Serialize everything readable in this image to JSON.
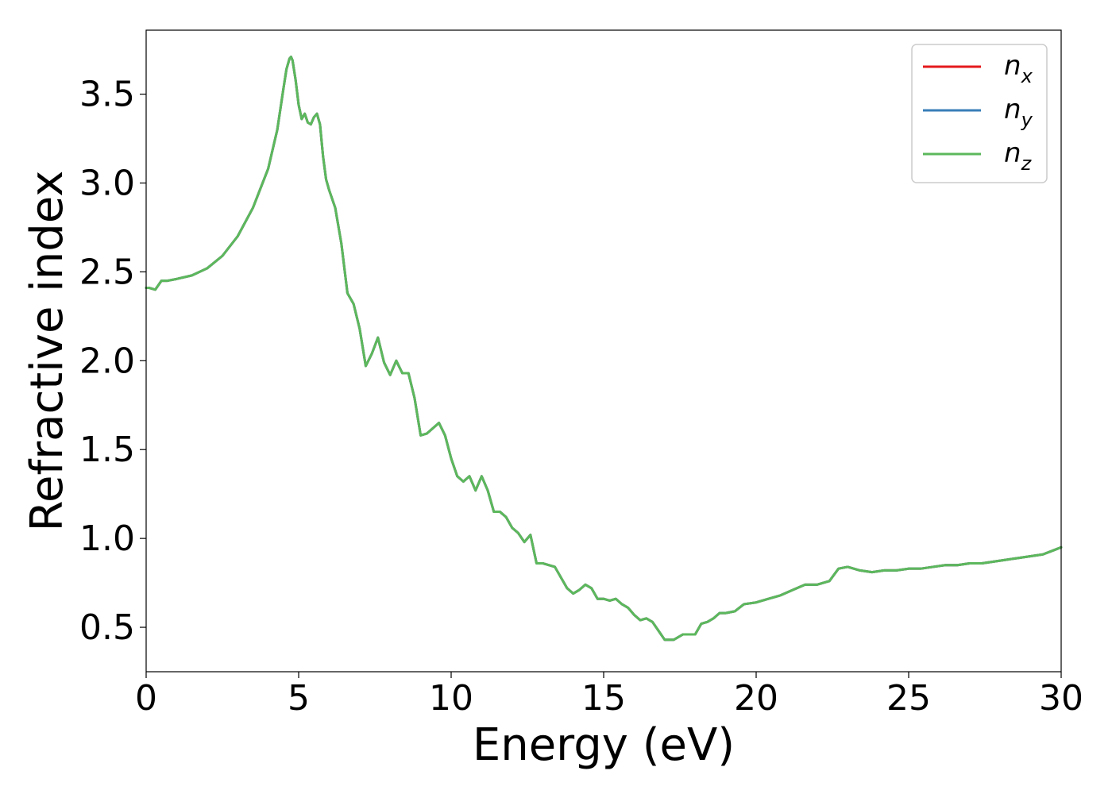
{
  "chart_data": {
    "type": "line",
    "xlabel": "Energy (eV)",
    "ylabel": "Refractive index",
    "xlim": [
      0,
      30
    ],
    "ylim": [
      0.25,
      3.86
    ],
    "xticks": [
      0,
      5,
      10,
      15,
      20,
      25,
      30
    ],
    "yticks": [
      0.5,
      1.0,
      1.5,
      2.0,
      2.5,
      3.0,
      3.5
    ],
    "grid": false,
    "legend_position": "top-right",
    "x": [
      0,
      0.1,
      0.3,
      0.5,
      0.7,
      1.0,
      1.5,
      2.0,
      2.5,
      3.0,
      3.5,
      4.0,
      4.3,
      4.5,
      4.6,
      4.7,
      4.75,
      4.8,
      4.9,
      5.0,
      5.1,
      5.2,
      5.3,
      5.4,
      5.5,
      5.6,
      5.7,
      5.8,
      5.9,
      6.0,
      6.2,
      6.4,
      6.6,
      6.8,
      7.0,
      7.2,
      7.4,
      7.6,
      7.8,
      8.0,
      8.2,
      8.4,
      8.6,
      8.8,
      9.0,
      9.2,
      9.4,
      9.6,
      9.8,
      10.0,
      10.2,
      10.4,
      10.6,
      10.8,
      11.0,
      11.2,
      11.4,
      11.6,
      11.8,
      12.0,
      12.2,
      12.4,
      12.6,
      12.8,
      13.0,
      13.4,
      13.8,
      14.0,
      14.2,
      14.4,
      14.6,
      14.8,
      15.0,
      15.2,
      15.4,
      15.6,
      15.8,
      16.0,
      16.2,
      16.4,
      16.6,
      16.8,
      17.0,
      17.3,
      17.6,
      17.8,
      18.0,
      18.2,
      18.4,
      18.6,
      18.8,
      19.0,
      19.3,
      19.6,
      20.0,
      20.4,
      20.8,
      21.2,
      21.6,
      22.0,
      22.4,
      22.7,
      23.0,
      23.4,
      23.8,
      24.2,
      24.6,
      25.0,
      25.4,
      25.8,
      26.2,
      26.6,
      27.0,
      27.4,
      27.8,
      28.2,
      28.6,
      29.0,
      29.4,
      29.7,
      30.0
    ],
    "series": [
      {
        "name": "n_x",
        "label_base": "n",
        "label_sub": "x",
        "color": "#e41a1c",
        "values": [
          2.41,
          2.41,
          2.4,
          2.45,
          2.45,
          2.46,
          2.48,
          2.52,
          2.59,
          2.7,
          2.86,
          3.08,
          3.3,
          3.53,
          3.64,
          3.7,
          3.71,
          3.69,
          3.58,
          3.44,
          3.36,
          3.39,
          3.34,
          3.33,
          3.37,
          3.39,
          3.33,
          3.15,
          3.02,
          2.96,
          2.86,
          2.66,
          2.38,
          2.32,
          2.18,
          1.97,
          2.04,
          2.13,
          1.99,
          1.92,
          2.0,
          1.93,
          1.93,
          1.79,
          1.58,
          1.59,
          1.62,
          1.65,
          1.58,
          1.45,
          1.35,
          1.32,
          1.35,
          1.27,
          1.35,
          1.27,
          1.15,
          1.15,
          1.12,
          1.06,
          1.03,
          0.98,
          1.02,
          0.86,
          0.86,
          0.84,
          0.72,
          0.69,
          0.71,
          0.74,
          0.72,
          0.66,
          0.66,
          0.65,
          0.66,
          0.63,
          0.61,
          0.57,
          0.54,
          0.55,
          0.53,
          0.48,
          0.43,
          0.43,
          0.46,
          0.46,
          0.46,
          0.52,
          0.53,
          0.55,
          0.58,
          0.58,
          0.59,
          0.63,
          0.64,
          0.66,
          0.68,
          0.71,
          0.74,
          0.74,
          0.76,
          0.83,
          0.84,
          0.82,
          0.81,
          0.82,
          0.82,
          0.83,
          0.83,
          0.84,
          0.85,
          0.85,
          0.86,
          0.86,
          0.87,
          0.88,
          0.89,
          0.9,
          0.91,
          0.93,
          0.95
        ]
      },
      {
        "name": "n_y",
        "label_base": "n",
        "label_sub": "y",
        "color": "#377eb8",
        "values": [
          2.41,
          2.41,
          2.4,
          2.45,
          2.45,
          2.46,
          2.48,
          2.52,
          2.59,
          2.7,
          2.86,
          3.08,
          3.3,
          3.53,
          3.64,
          3.7,
          3.71,
          3.69,
          3.58,
          3.44,
          3.36,
          3.39,
          3.34,
          3.33,
          3.37,
          3.39,
          3.33,
          3.15,
          3.02,
          2.96,
          2.86,
          2.66,
          2.38,
          2.32,
          2.18,
          1.97,
          2.04,
          2.13,
          1.99,
          1.92,
          2.0,
          1.93,
          1.93,
          1.79,
          1.58,
          1.59,
          1.62,
          1.65,
          1.58,
          1.45,
          1.35,
          1.32,
          1.35,
          1.27,
          1.35,
          1.27,
          1.15,
          1.15,
          1.12,
          1.06,
          1.03,
          0.98,
          1.02,
          0.86,
          0.86,
          0.84,
          0.72,
          0.69,
          0.71,
          0.74,
          0.72,
          0.66,
          0.66,
          0.65,
          0.66,
          0.63,
          0.61,
          0.57,
          0.54,
          0.55,
          0.53,
          0.48,
          0.43,
          0.43,
          0.46,
          0.46,
          0.46,
          0.52,
          0.53,
          0.55,
          0.58,
          0.58,
          0.59,
          0.63,
          0.64,
          0.66,
          0.68,
          0.71,
          0.74,
          0.74,
          0.76,
          0.83,
          0.84,
          0.82,
          0.81,
          0.82,
          0.82,
          0.83,
          0.83,
          0.84,
          0.85,
          0.85,
          0.86,
          0.86,
          0.87,
          0.88,
          0.89,
          0.9,
          0.91,
          0.93,
          0.95
        ]
      },
      {
        "name": "n_z",
        "label_base": "n",
        "label_sub": "z",
        "color": "#5cb85c",
        "values": [
          2.41,
          2.41,
          2.4,
          2.45,
          2.45,
          2.46,
          2.48,
          2.52,
          2.59,
          2.7,
          2.86,
          3.08,
          3.3,
          3.53,
          3.64,
          3.7,
          3.71,
          3.69,
          3.58,
          3.44,
          3.36,
          3.39,
          3.34,
          3.33,
          3.37,
          3.39,
          3.33,
          3.15,
          3.02,
          2.96,
          2.86,
          2.66,
          2.38,
          2.32,
          2.18,
          1.97,
          2.04,
          2.13,
          1.99,
          1.92,
          2.0,
          1.93,
          1.93,
          1.79,
          1.58,
          1.59,
          1.62,
          1.65,
          1.58,
          1.45,
          1.35,
          1.32,
          1.35,
          1.27,
          1.35,
          1.27,
          1.15,
          1.15,
          1.12,
          1.06,
          1.03,
          0.98,
          1.02,
          0.86,
          0.86,
          0.84,
          0.72,
          0.69,
          0.71,
          0.74,
          0.72,
          0.66,
          0.66,
          0.65,
          0.66,
          0.63,
          0.61,
          0.57,
          0.54,
          0.55,
          0.53,
          0.48,
          0.43,
          0.43,
          0.46,
          0.46,
          0.46,
          0.52,
          0.53,
          0.55,
          0.58,
          0.58,
          0.59,
          0.63,
          0.64,
          0.66,
          0.68,
          0.71,
          0.74,
          0.74,
          0.76,
          0.83,
          0.84,
          0.82,
          0.81,
          0.82,
          0.82,
          0.83,
          0.83,
          0.84,
          0.85,
          0.85,
          0.86,
          0.86,
          0.87,
          0.88,
          0.89,
          0.9,
          0.91,
          0.93,
          0.95
        ]
      }
    ]
  }
}
